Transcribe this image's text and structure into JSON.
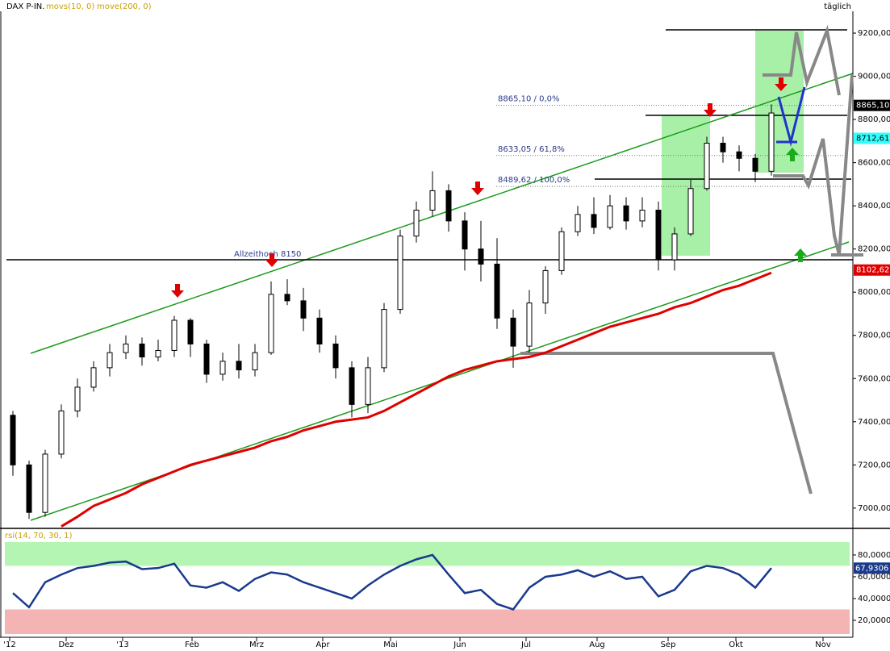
{
  "chart_data": {
    "type": "candlestick",
    "title": "DAX P-IN.",
    "indicators": [
      "movs(10, 0)",
      "move(200, 0)"
    ],
    "period": "täglich",
    "x": [
      2,
      7,
      12,
      17,
      22,
      27,
      32,
      37,
      42,
      47,
      52,
      57,
      62,
      67,
      72,
      77,
      82,
      87,
      92,
      97,
      102,
      107,
      112,
      117,
      122,
      127,
      132,
      137,
      142,
      147,
      152,
      157,
      162,
      167,
      172,
      177,
      182,
      187,
      192,
      197,
      202,
      207,
      212,
      217,
      222,
      227,
      232,
      237
    ],
    "xlim": [
      0,
      262.25
    ],
    "xticks": [
      {
        "value": 1,
        "label": "'12"
      },
      {
        "value": 18.5,
        "label": "Dez"
      },
      {
        "value": 36,
        "label": "'13"
      },
      {
        "value": 57.5,
        "label": "Feb"
      },
      {
        "value": 77.5,
        "label": "Mrz"
      },
      {
        "value": 98,
        "label": "Apr"
      },
      {
        "value": 119,
        "label": "Mai"
      },
      {
        "value": 140.5,
        "label": "Jun"
      },
      {
        "value": 161,
        "label": "Jul"
      },
      {
        "value": 183,
        "label": "Aug"
      },
      {
        "value": 205,
        "label": "Sep"
      },
      {
        "value": 226,
        "label": "Okt"
      },
      {
        "value": 253,
        "label": "Nov"
      }
    ],
    "open": [
      7430,
      7200,
      6980,
      7250,
      7450,
      7560,
      7650,
      7720,
      7760,
      7700,
      7730,
      7870,
      7760,
      7620,
      7680,
      7640,
      7720,
      7990,
      7960,
      7880,
      7760,
      7650,
      7480,
      7650,
      7920,
      8260,
      8380,
      8470,
      8330,
      8200,
      8130,
      7880,
      7750,
      7950,
      8100,
      8280,
      8360,
      8300,
      8400,
      8330,
      8380,
      8150,
      8270,
      8480,
      8690,
      8650,
      8620,
      8560
    ],
    "high": [
      7450,
      7220,
      7270,
      7480,
      7600,
      7680,
      7760,
      7800,
      7790,
      7780,
      7890,
      7880,
      7780,
      7720,
      7760,
      7760,
      8050,
      8060,
      8020,
      7920,
      7800,
      7680,
      7700,
      7950,
      8290,
      8420,
      8560,
      8500,
      8370,
      8330,
      8250,
      7920,
      8010,
      8120,
      8300,
      8400,
      8440,
      8450,
      8440,
      8440,
      8420,
      8300,
      8520,
      8720,
      8720,
      8680,
      8640,
      8870
    ],
    "low": [
      7150,
      6950,
      6960,
      7230,
      7420,
      7540,
      7610,
      7690,
      7660,
      7680,
      7700,
      7700,
      7580,
      7590,
      7600,
      7610,
      7710,
      7940,
      7820,
      7720,
      7600,
      7420,
      7440,
      7630,
      7900,
      8230,
      8350,
      8280,
      8100,
      8050,
      7830,
      7650,
      7720,
      7900,
      8080,
      8260,
      8270,
      8290,
      8290,
      8300,
      8100,
      8100,
      8260,
      8470,
      8600,
      8560,
      8510,
      8540
    ],
    "close": [
      7200,
      6980,
      7250,
      7450,
      7560,
      7650,
      7720,
      7760,
      7700,
      7730,
      7870,
      7760,
      7620,
      7680,
      7640,
      7720,
      7990,
      7960,
      7880,
      7760,
      7650,
      7480,
      7650,
      7920,
      8260,
      8380,
      8470,
      8330,
      8200,
      8130,
      7880,
      7750,
      7950,
      8100,
      8280,
      8360,
      8300,
      8400,
      8330,
      8380,
      8150,
      8270,
      8480,
      8690,
      8650,
      8620,
      8560,
      8830
    ],
    "series": [
      {
        "color": "#e00000",
        "values": [
          null,
          null,
          null,
          6915,
          6960,
          7010,
          7040,
          7070,
          7110,
          7140,
          7170,
          7200,
          7220,
          7240,
          7260,
          7280,
          7310,
          7330,
          7360,
          7380,
          7400,
          7410,
          7420,
          7450,
          7490,
          7530,
          7570,
          7610,
          7640,
          7660,
          7680,
          7690,
          7700,
          7720,
          7750,
          7780,
          7810,
          7840,
          7860,
          7880,
          7900,
          7930,
          7950,
          7980,
          8010,
          8030,
          8060,
          8090
        ]
      }
    ],
    "ylim": [
      6906,
      9301
    ],
    "yticks": [
      {
        "value": 7000,
        "label": "7000,00"
      },
      {
        "value": 7200,
        "label": "7200,00"
      },
      {
        "value": 7400,
        "label": "7400,00"
      },
      {
        "value": 7600,
        "label": "7600,00"
      },
      {
        "value": 7800,
        "label": "7800,00"
      },
      {
        "value": 8000,
        "label": "8000,00"
      },
      {
        "value": 8200,
        "label": "8200,00"
      },
      {
        "value": 8400,
        "label": "8400,00"
      },
      {
        "value": 8600,
        "label": "8600,00"
      },
      {
        "value": 8800,
        "label": "8800,00"
      },
      {
        "value": 9000,
        "label": "9000,00"
      },
      {
        "value": 9200,
        "label": "9200,00"
      }
    ],
    "price_labels": [
      {
        "value": 8865.1,
        "label": "8865,10",
        "color": "#000000",
        "text_color": "#ffffff"
      },
      {
        "value": 8712.61,
        "label": "8712,61",
        "color": "#33ffff",
        "text_color": "#000000"
      },
      {
        "value": 8102.62,
        "label": "8102,62",
        "color": "#e00000",
        "text_color": "#ffffff"
      }
    ],
    "levels": [
      {
        "value": 8150,
        "text": "Allzeithoch 8150"
      },
      {
        "value": 8865.1,
        "text": "8865,10 / 0,0%"
      },
      {
        "value": 8633.05,
        "text": "8633,05 / 61,8%"
      },
      {
        "value": 8489.62,
        "text": "8489,62 / 100,0%"
      }
    ],
    "rsi": {
      "label": "rsi(14, 70, 30, 1)",
      "color": "#1a3a8c",
      "values": [
        45,
        32,
        55,
        62,
        68,
        70,
        73,
        74,
        67,
        68,
        72,
        52,
        50,
        55,
        47,
        58,
        64,
        62,
        55,
        50,
        45,
        40,
        52,
        62,
        70,
        76,
        80,
        62,
        45,
        48,
        35,
        30,
        50,
        60,
        62,
        66,
        60,
        65,
        58,
        60,
        42,
        48,
        65,
        70,
        68,
        62,
        50,
        68
      ],
      "ylim": [
        5.9,
        102.2
      ],
      "yticks": [
        {
          "value": 20,
          "label": "20,0000"
        },
        {
          "value": 40,
          "label": "40,0000"
        },
        {
          "value": 60,
          "label": "60,0000"
        },
        {
          "value": 80,
          "label": "80,0000"
        }
      ],
      "upper": 70,
      "lower": 30,
      "last": {
        "value": 67.9306,
        "label": "67,9306"
      }
    }
  }
}
